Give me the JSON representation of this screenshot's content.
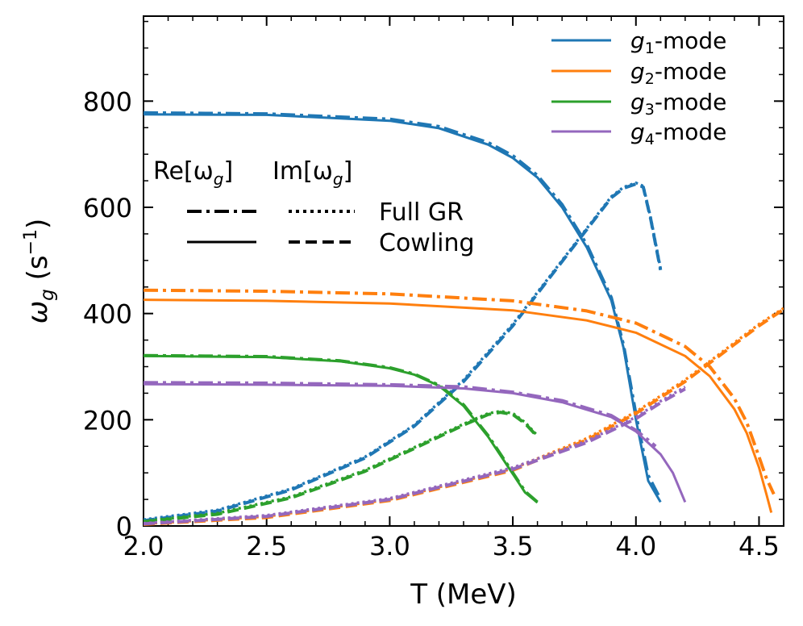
{
  "chart_data": {
    "type": "line",
    "xlabel": "T (MeV)",
    "ylabel_main": "ω",
    "ylabel_sub": "g",
    "ylabel_unit_open": " (s",
    "ylabel_unit_exp": "−1",
    "ylabel_unit_close": ")",
    "xlim": [
      2.0,
      4.6
    ],
    "ylim": [
      0,
      960
    ],
    "x_ticks": [
      {
        "value": 2.0,
        "label": "2.0"
      },
      {
        "value": 2.5,
        "label": "2.5"
      },
      {
        "value": 3.0,
        "label": "3.0"
      },
      {
        "value": 3.5,
        "label": "3.5"
      },
      {
        "value": 4.0,
        "label": "4.0"
      },
      {
        "value": 4.5,
        "label": "4.5"
      }
    ],
    "y_ticks": [
      {
        "value": 0,
        "label": "0"
      },
      {
        "value": 200,
        "label": "200"
      },
      {
        "value": 400,
        "label": "400"
      },
      {
        "value": 600,
        "label": "600"
      },
      {
        "value": 800,
        "label": "800"
      }
    ],
    "modes": [
      {
        "key": "g1",
        "sym": "g",
        "sub": "1",
        "suffix": "-mode",
        "color": "#1f77b4"
      },
      {
        "key": "g2",
        "sym": "g",
        "sub": "2",
        "suffix": "-mode",
        "color": "#ff7f0e"
      },
      {
        "key": "g3",
        "sym": "g",
        "sub": "3",
        "suffix": "-mode",
        "color": "#2ca02c"
      },
      {
        "key": "g4",
        "sym": "g",
        "sub": "4",
        "suffix": "-mode",
        "color": "#9467bd"
      }
    ],
    "style_legend": {
      "re_head": "Re[ω",
      "re_sub": "g",
      "re_tail": "]",
      "im_head": "Im[ω",
      "im_sub": "g",
      "im_tail": "]",
      "rows": [
        {
          "label": "Full GR",
          "re_style": "dashdot",
          "im_style": "dotted"
        },
        {
          "label": "Cowling",
          "re_style": "solid",
          "im_style": "dashed"
        }
      ]
    },
    "series": [
      {
        "name": "g1 Re Full GR",
        "mode": "g1",
        "style": "dashdot",
        "x": [
          2.0,
          2.5,
          3.0,
          3.2,
          3.4,
          3.5,
          3.6,
          3.7,
          3.8,
          3.9,
          3.95,
          4.0,
          4.05,
          4.1
        ],
        "y": [
          778,
          776,
          766,
          752,
          722,
          697,
          660,
          605,
          530,
          430,
          340,
          210,
          95,
          50
        ]
      },
      {
        "name": "g1 Re Cowling",
        "mode": "g1",
        "style": "solid",
        "x": [
          2.0,
          2.5,
          3.0,
          3.2,
          3.4,
          3.5,
          3.6,
          3.7,
          3.8,
          3.9,
          3.95,
          4.0,
          4.05,
          4.1
        ],
        "y": [
          775,
          774,
          763,
          749,
          718,
          693,
          656,
          600,
          525,
          425,
          335,
          200,
          85,
          45
        ]
      },
      {
        "name": "g1 Im Full GR",
        "mode": "g1",
        "style": "dotted",
        "x": [
          2.0,
          2.3,
          2.6,
          2.9,
          3.1,
          3.3,
          3.5,
          3.7,
          3.8,
          3.9,
          3.95,
          4.0,
          4.03,
          4.06,
          4.1
        ],
        "y": [
          12,
          30,
          70,
          130,
          190,
          275,
          380,
          500,
          560,
          620,
          638,
          646,
          640,
          580,
          485
        ]
      },
      {
        "name": "g1 Im Cowling",
        "mode": "g1",
        "style": "dashed",
        "x": [
          2.0,
          2.3,
          2.6,
          2.9,
          3.1,
          3.3,
          3.5,
          3.7,
          3.8,
          3.9,
          3.95,
          4.0,
          4.03,
          4.06,
          4.1
        ],
        "y": [
          10,
          28,
          68,
          128,
          188,
          272,
          377,
          498,
          558,
          618,
          636,
          644,
          638,
          578,
          482
        ]
      },
      {
        "name": "g2 Re Full GR",
        "mode": "g2",
        "style": "dashdot",
        "x": [
          2.0,
          2.5,
          3.0,
          3.5,
          3.8,
          4.0,
          4.2,
          4.3,
          4.4,
          4.45,
          4.5,
          4.53,
          4.56
        ],
        "y": [
          444,
          442,
          437,
          424,
          405,
          382,
          338,
          300,
          240,
          195,
          130,
          90,
          60
        ]
      },
      {
        "name": "g2 Re Cowling",
        "mode": "g2",
        "style": "solid",
        "x": [
          2.0,
          2.5,
          3.0,
          3.5,
          3.8,
          4.0,
          4.2,
          4.3,
          4.4,
          4.45,
          4.5,
          4.53,
          4.55
        ],
        "y": [
          426,
          424,
          419,
          406,
          387,
          364,
          320,
          282,
          220,
          175,
          110,
          60,
          25
        ]
      },
      {
        "name": "g2 Im Full GR",
        "mode": "g2",
        "style": "dotted",
        "x": [
          2.0,
          2.5,
          3.0,
          3.5,
          3.8,
          4.0,
          4.2,
          4.3,
          4.4,
          4.5,
          4.6
        ],
        "y": [
          4,
          18,
          50,
          108,
          165,
          215,
          275,
          310,
          345,
          380,
          410
        ]
      },
      {
        "name": "g2 Im Cowling",
        "mode": "g2",
        "style": "dashed",
        "x": [
          2.0,
          2.5,
          3.0,
          3.5,
          3.8,
          4.0,
          4.2,
          4.3,
          4.4,
          4.5,
          4.6
        ],
        "y": [
          3,
          16,
          48,
          105,
          162,
          212,
          272,
          307,
          342,
          377,
          408
        ]
      },
      {
        "name": "g3 Re Full GR",
        "mode": "g3",
        "style": "dashdot",
        "x": [
          2.0,
          2.5,
          2.8,
          3.0,
          3.1,
          3.2,
          3.3,
          3.4,
          3.5,
          3.55,
          3.6
        ],
        "y": [
          321,
          319,
          311,
          298,
          286,
          265,
          228,
          170,
          100,
          65,
          45
        ]
      },
      {
        "name": "g3 Re Cowling",
        "mode": "g3",
        "style": "solid",
        "x": [
          2.0,
          2.5,
          2.8,
          3.0,
          3.1,
          3.2,
          3.3,
          3.4,
          3.5,
          3.55,
          3.6
        ],
        "y": [
          320,
          318,
          310,
          297,
          285,
          264,
          226,
          168,
          98,
          63,
          44
        ]
      },
      {
        "name": "g3 Im Full GR",
        "mode": "g3",
        "style": "dotted",
        "x": [
          2.0,
          2.3,
          2.6,
          2.9,
          3.1,
          3.2,
          3.3,
          3.4,
          3.45,
          3.5,
          3.55,
          3.6
        ],
        "y": [
          9,
          24,
          55,
          105,
          148,
          170,
          192,
          212,
          216,
          212,
          195,
          170
        ]
      },
      {
        "name": "g3 Im Cowling",
        "mode": "g3",
        "style": "dashed",
        "x": [
          2.0,
          2.3,
          2.6,
          2.9,
          3.1,
          3.2,
          3.3,
          3.4,
          3.45,
          3.5,
          3.55,
          3.6
        ],
        "y": [
          8,
          22,
          53,
          103,
          146,
          168,
          190,
          210,
          214,
          210,
          193,
          168
        ]
      },
      {
        "name": "g4 Re Full GR",
        "mode": "g4",
        "style": "dashdot",
        "x": [
          2.0,
          2.5,
          3.0,
          3.3,
          3.5,
          3.7,
          3.9,
          4.0,
          4.05,
          4.08
        ],
        "y": [
          270,
          269,
          266,
          262,
          252,
          236,
          208,
          180,
          162,
          150
        ]
      },
      {
        "name": "g4 Re Cowling",
        "mode": "g4",
        "style": "solid",
        "x": [
          2.0,
          2.5,
          3.0,
          3.3,
          3.5,
          3.7,
          3.9,
          4.0,
          4.1,
          4.15,
          4.2
        ],
        "y": [
          267,
          266,
          264,
          259,
          250,
          233,
          205,
          178,
          135,
          100,
          45
        ]
      },
      {
        "name": "g4 Im Full GR",
        "mode": "g4",
        "style": "dotted",
        "x": [
          2.0,
          2.5,
          3.0,
          3.5,
          3.8,
          4.0,
          4.1,
          4.2
        ],
        "y": [
          5,
          20,
          52,
          110,
          160,
          205,
          235,
          262
        ]
      },
      {
        "name": "g4 Im Cowling",
        "mode": "g4",
        "style": "dashed",
        "x": [
          2.0,
          2.5,
          3.0,
          3.5,
          3.8,
          4.0,
          4.1,
          4.2
        ],
        "y": [
          4,
          18,
          50,
          107,
          157,
          202,
          232,
          258
        ]
      }
    ]
  }
}
